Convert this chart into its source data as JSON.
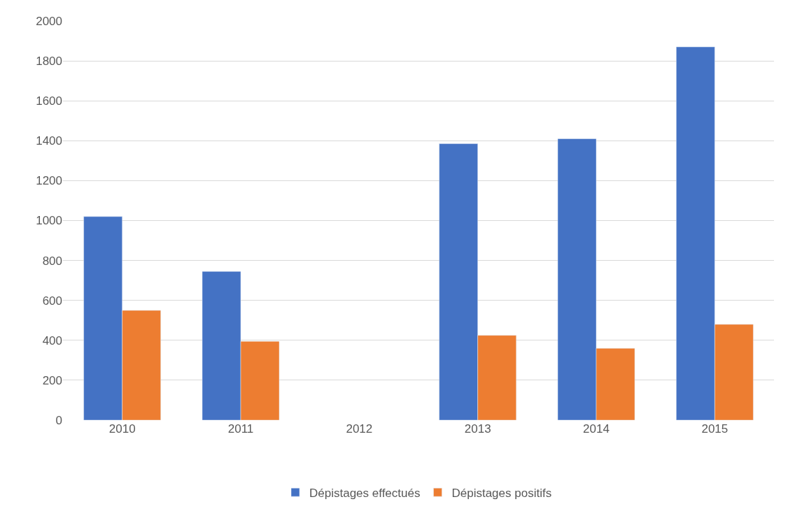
{
  "chart_data": {
    "type": "bar",
    "categories": [
      "2010",
      "2011",
      "2012",
      "2013",
      "2014",
      "2015"
    ],
    "series": [
      {
        "name": "Dépistages effectués",
        "color": "#4472c4",
        "values": [
          1020,
          745,
          null,
          1385,
          1410,
          1870
        ]
      },
      {
        "name": "Dépistages positifs",
        "color": "#ed7d31",
        "values": [
          550,
          395,
          null,
          425,
          360,
          480
        ]
      }
    ],
    "ylim": [
      0,
      2000
    ],
    "yticks": [
      0,
      200,
      400,
      600,
      800,
      1000,
      1200,
      1400,
      1600,
      1800,
      2000
    ],
    "grid": "y",
    "legend": "bottom"
  }
}
